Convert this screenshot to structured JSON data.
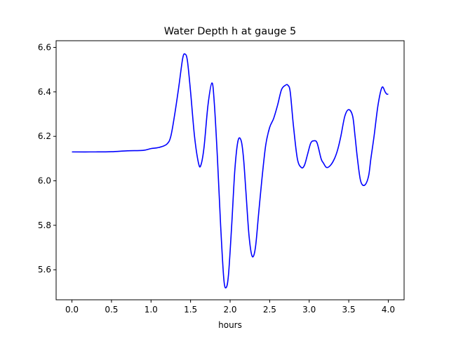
{
  "chart_data": {
    "type": "line",
    "title": "Water Depth h at gauge 5",
    "xlabel": "hours",
    "ylabel": "",
    "xlim": [
      -0.2,
      4.2
    ],
    "ylim": [
      5.465,
      6.63
    ],
    "xticks": [
      0.0,
      0.5,
      1.0,
      1.5,
      2.0,
      2.5,
      3.0,
      3.5,
      4.0
    ],
    "xtick_labels": [
      "0.0",
      "0.5",
      "1.0",
      "1.5",
      "2.0",
      "2.5",
      "3.0",
      "3.5",
      "4.0"
    ],
    "yticks": [
      5.6,
      5.8,
      6.0,
      6.2,
      6.4,
      6.6
    ],
    "ytick_labels": [
      "5.6",
      "5.8",
      "6.0",
      "6.2",
      "6.4",
      "6.6"
    ],
    "grid": false,
    "legend": "none",
    "series": [
      {
        "color": "#0000ff",
        "x": [
          0.0,
          0.3,
          0.5,
          0.7,
          0.9,
          1.0,
          1.1,
          1.2,
          1.25,
          1.3,
          1.35,
          1.4,
          1.43,
          1.46,
          1.5,
          1.55,
          1.6,
          1.63,
          1.67,
          1.72,
          1.77,
          1.8,
          1.84,
          1.88,
          1.92,
          1.95,
          1.98,
          2.02,
          2.06,
          2.1,
          2.14,
          2.17,
          2.2,
          2.24,
          2.28,
          2.32,
          2.36,
          2.4,
          2.45,
          2.5,
          2.55,
          2.6,
          2.65,
          2.7,
          2.73,
          2.76,
          2.8,
          2.85,
          2.9,
          2.94,
          2.98,
          3.02,
          3.06,
          3.1,
          3.15,
          3.18,
          3.22,
          3.27,
          3.32,
          3.36,
          3.4,
          3.45,
          3.5,
          3.55,
          3.58,
          3.61,
          3.65,
          3.7,
          3.75,
          3.78,
          3.82,
          3.87,
          3.92,
          3.96,
          3.98,
          4.0
        ],
        "y": [
          6.13,
          6.13,
          6.131,
          6.135,
          6.137,
          6.145,
          6.15,
          6.165,
          6.2,
          6.3,
          6.42,
          6.55,
          6.57,
          6.54,
          6.4,
          6.2,
          6.08,
          6.07,
          6.15,
          6.34,
          6.44,
          6.35,
          6.1,
          5.8,
          5.56,
          5.52,
          5.58,
          5.8,
          6.05,
          6.18,
          6.18,
          6.1,
          5.95,
          5.75,
          5.66,
          5.7,
          5.85,
          6.0,
          6.16,
          6.24,
          6.28,
          6.34,
          6.41,
          6.43,
          6.43,
          6.4,
          6.25,
          6.1,
          6.06,
          6.07,
          6.12,
          6.17,
          6.18,
          6.17,
          6.1,
          6.08,
          6.06,
          6.07,
          6.1,
          6.14,
          6.2,
          6.29,
          6.32,
          6.29,
          6.2,
          6.1,
          6.0,
          5.98,
          6.02,
          6.1,
          6.2,
          6.34,
          6.42,
          6.4,
          6.39,
          6.39
        ]
      }
    ]
  }
}
